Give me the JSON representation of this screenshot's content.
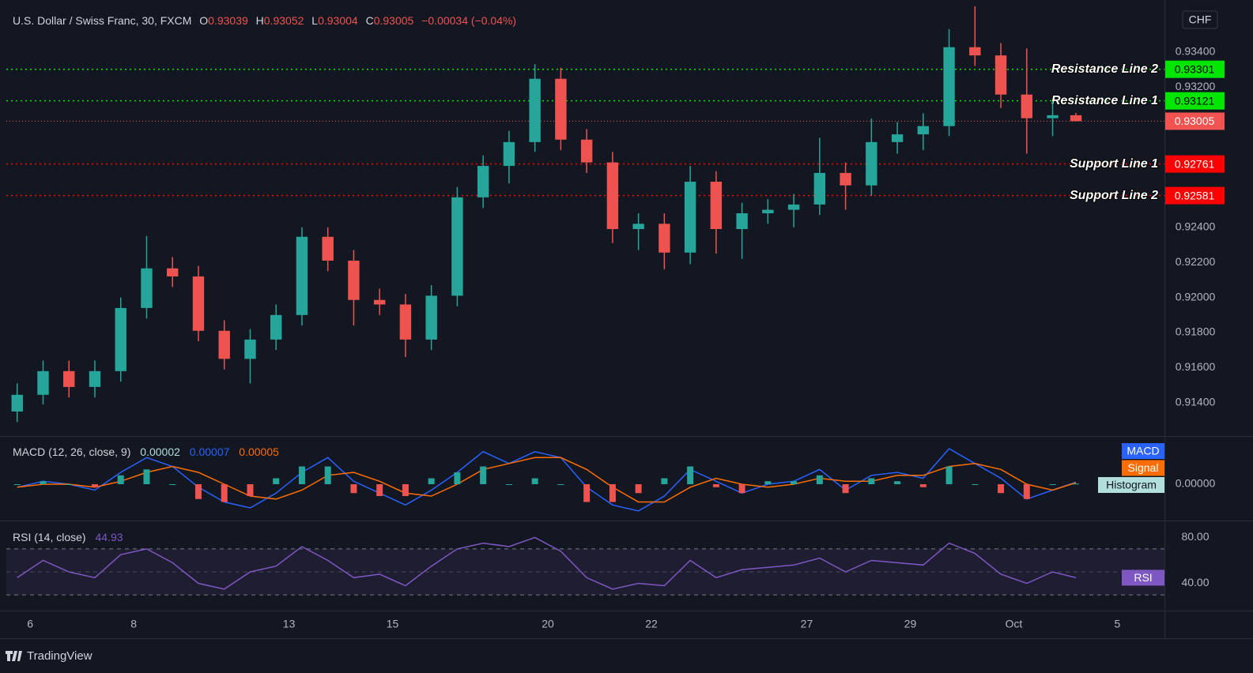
{
  "header": {
    "symbol": "U.S. Dollar / Swiss Franc, 30, FXCM",
    "ohlc_labels": [
      "O",
      "H",
      "L",
      "C"
    ],
    "change": "−0.00034 (−0.04%)",
    "currency": "CHF",
    "brand": "TradingView"
  },
  "chart_data": [
    {
      "type": "candlestick",
      "up_color": "#26a69a",
      "down_color": "#ef5350",
      "last_price_color": "#f05350",
      "x": [
        -0.25,
        0.25,
        0.75,
        1.25,
        1.75,
        2.25,
        2.75,
        3.25,
        3.75,
        4.25,
        4.75,
        5.25,
        5.75,
        6.25,
        6.75,
        7.25,
        7.75,
        8.25,
        8.75,
        9.25,
        9.75,
        10.25,
        10.75,
        11.25,
        11.75,
        12.25,
        12.75,
        13.25,
        13.75,
        14.25,
        14.75,
        15.25,
        15.75,
        16.25,
        16.75,
        17.25,
        17.75,
        18.25,
        18.75,
        19.25,
        19.75,
        20.2
      ],
      "open": [
        0.9135,
        0.91445,
        0.9158,
        0.9149,
        0.9158,
        0.9194,
        0.92166,
        0.9212,
        0.9181,
        0.9165,
        0.9176,
        0.919,
        0.92346,
        0.9221,
        0.91986,
        0.9196,
        0.9176,
        0.9201,
        0.92571,
        0.9275,
        0.92886,
        0.93247,
        0.929,
        0.9277,
        0.9239,
        0.9242,
        0.92256,
        0.9266,
        0.9239,
        0.9248,
        0.925,
        0.9253,
        0.9271,
        0.92639,
        0.92886,
        0.9293,
        0.92977,
        0.93427,
        0.9338,
        0.93157,
        0.93022,
        0.93039
      ],
      "high": [
        0.9151,
        0.9164,
        0.9164,
        0.9164,
        0.92,
        0.9235,
        0.9223,
        0.9218,
        0.9187,
        0.9182,
        0.9196,
        0.924,
        0.924,
        0.9227,
        0.9205,
        0.9202,
        0.9207,
        0.9263,
        0.9281,
        0.9295,
        0.9333,
        0.9331,
        0.9296,
        0.9283,
        0.9248,
        0.9248,
        0.9275,
        0.9272,
        0.9254,
        0.9256,
        0.9259,
        0.9291,
        0.9277,
        0.9302,
        0.93,
        0.9305,
        0.9353,
        0.9366,
        0.9345,
        0.9342,
        0.9312,
        0.93052
      ],
      "low": [
        0.9129,
        0.9139,
        0.9143,
        0.9143,
        0.9152,
        0.9188,
        0.9206,
        0.9175,
        0.9159,
        0.9151,
        0.917,
        0.9184,
        0.9215,
        0.9184,
        0.919,
        0.9166,
        0.917,
        0.9195,
        0.9251,
        0.9265,
        0.9283,
        0.9284,
        0.9271,
        0.9231,
        0.9227,
        0.9216,
        0.9219,
        0.9225,
        0.9222,
        0.9242,
        0.924,
        0.9247,
        0.925,
        0.9258,
        0.9282,
        0.9284,
        0.9292,
        0.9332,
        0.9308,
        0.9282,
        0.9292,
        0.93004
      ],
      "close": [
        0.91445,
        0.9158,
        0.9149,
        0.9158,
        0.9194,
        0.92166,
        0.9212,
        0.9181,
        0.9165,
        0.9176,
        0.919,
        0.92346,
        0.9221,
        0.91986,
        0.9196,
        0.9176,
        0.9201,
        0.92571,
        0.9275,
        0.92886,
        0.93247,
        0.929,
        0.9277,
        0.9239,
        0.9242,
        0.92256,
        0.9266,
        0.9239,
        0.9248,
        0.925,
        0.9253,
        0.9271,
        0.92639,
        0.92886,
        0.9293,
        0.92977,
        0.93427,
        0.9338,
        0.93157,
        0.93022,
        0.93039,
        0.93005
      ],
      "xlim": [
        -0.46,
        21.91
      ],
      "xticks": [
        {
          "value": 0,
          "label": "6"
        },
        {
          "value": 2,
          "label": "8"
        },
        {
          "value": 5,
          "label": "13"
        },
        {
          "value": 7,
          "label": "15"
        },
        {
          "value": 10,
          "label": "20"
        },
        {
          "value": 12,
          "label": "22"
        },
        {
          "value": 15,
          "label": "27"
        },
        {
          "value": 17,
          "label": "29"
        },
        {
          "value": 19,
          "label": "Oct"
        },
        {
          "value": 21,
          "label": "5"
        }
      ],
      "ylim": [
        0.9121,
        0.9366
      ],
      "yticks": [
        {
          "value": 0.914,
          "label": "0.91400"
        },
        {
          "value": 0.916,
          "label": "0.91600"
        },
        {
          "value": 0.918,
          "label": "0.91800"
        },
        {
          "value": 0.92,
          "label": "0.92000"
        },
        {
          "value": 0.922,
          "label": "0.92200"
        },
        {
          "value": 0.924,
          "label": "0.92400"
        },
        {
          "value": 0.932,
          "label": "0.93200"
        },
        {
          "value": 0.934,
          "label": "0.93400"
        }
      ],
      "levels": [
        {
          "name": "Resistance Line 2",
          "value": 0.93301,
          "color": "#00e600",
          "text_color": "#000000"
        },
        {
          "name": "Resistance Line 1",
          "value": 0.93121,
          "color": "#00e600",
          "text_color": "#000000"
        },
        {
          "name": "Support Line 1",
          "value": 0.92761,
          "color": "#ff0000",
          "text_color": "#ffffff"
        },
        {
          "name": "Support Line 2",
          "value": 0.92581,
          "color": "#ff0000",
          "text_color": "#ffffff"
        }
      ]
    },
    {
      "type": "line",
      "title": "MACD (12, 26, close, 9)",
      "x": [
        -0.25,
        0.25,
        0.75,
        1.25,
        1.75,
        2.25,
        2.75,
        3.25,
        3.75,
        4.25,
        4.75,
        5.25,
        5.75,
        6.25,
        6.75,
        7.25,
        7.75,
        8.25,
        8.75,
        9.25,
        9.75,
        10.25,
        10.75,
        11.25,
        11.75,
        12.25,
        12.75,
        13.25,
        13.75,
        14.25,
        14.75,
        15.25,
        15.75,
        16.25,
        16.75,
        17.25,
        17.75,
        18.25,
        18.75,
        19.25,
        19.75,
        20.2
      ],
      "ylim": [
        -0.0012,
        0.0016
      ],
      "yticks": [
        {
          "value": 0,
          "label": "0.00000"
        }
      ],
      "series": [
        {
          "name": "MACD",
          "color": "#2962ff",
          "values": [
            -0.0001,
            0.0001,
            0,
            -0.0002,
            0.0004,
            0.0009,
            0.0006,
            -0.0001,
            -0.0006,
            -0.0008,
            -0.0003,
            0.0004,
            0.0009,
            0.0001,
            -0.0003,
            -0.0007,
            -0.0002,
            0.0004,
            0.0011,
            0.0007,
            0.0011,
            0.0009,
            -0.0001,
            -0.0007,
            -0.0009,
            -0.0004,
            0.0005,
            0.0001,
            -0.0003,
            0,
            0.0001,
            0.0005,
            -0.0002,
            0.0003,
            0.0004,
            0.0002,
            0.0012,
            0.0007,
            0.0002,
            -0.0005,
            -0.0002,
            7e-05
          ]
        },
        {
          "name": "Signal",
          "color": "#ff6d00",
          "values": [
            -0.0001,
            0,
            0,
            -0.0001,
            0.0001,
            0.0004,
            0.0006,
            0.0004,
            0,
            -0.0004,
            -0.0005,
            -0.0002,
            0.0003,
            0.0004,
            0.0001,
            -0.0003,
            -0.0004,
            0,
            0.0005,
            0.0007,
            0.0009,
            0.0009,
            0.0005,
            -0.0001,
            -0.0006,
            -0.0006,
            -0.0001,
            0.0002,
            0,
            -0.0001,
            0,
            0.0002,
            0.0001,
            0.0001,
            0.0003,
            0.0003,
            0.0006,
            0.0007,
            0.0005,
            0,
            -0.0002,
            5e-05
          ]
        },
        {
          "name": "Histogram",
          "style": "histogram",
          "color": "#26a69a",
          "negative_color": "#ef5350",
          "label_background": "#b2dfdb",
          "values": [
            0,
            0.0001,
            0,
            -0.0001,
            0.0003,
            0.0005,
            0,
            -0.0005,
            -0.0006,
            -0.0004,
            0.0002,
            0.0006,
            0.0006,
            -0.0003,
            -0.0004,
            -0.0004,
            0.0002,
            0.0004,
            0.0006,
            0,
            0.0002,
            0,
            -0.0006,
            -0.0006,
            -0.0003,
            0.0002,
            0.0006,
            -0.0001,
            -0.0003,
            0.0001,
            0.0001,
            0.0003,
            -0.0003,
            0.0002,
            0.0001,
            -0.0001,
            0.0006,
            0,
            -0.0003,
            -0.0005,
            0,
            2e-05
          ]
        }
      ]
    },
    {
      "type": "line",
      "title": "RSI (14, close)",
      "x": [
        -0.25,
        0.25,
        0.75,
        1.25,
        1.75,
        2.25,
        2.75,
        3.25,
        3.75,
        4.25,
        4.75,
        5.25,
        5.75,
        6.25,
        6.75,
        7.25,
        7.75,
        8.25,
        8.75,
        9.25,
        9.75,
        10.25,
        10.75,
        11.25,
        11.75,
        12.25,
        12.75,
        13.25,
        13.75,
        14.25,
        14.75,
        15.25,
        15.75,
        16.25,
        16.75,
        17.25,
        17.75,
        18.25,
        18.75,
        19.25,
        19.75,
        20.2
      ],
      "ylim": [
        17,
        94
      ],
      "yticks": [
        {
          "value": 80,
          "label": "80.00"
        },
        {
          "value": 40,
          "label": "40.00"
        }
      ],
      "band": [
        30,
        70
      ],
      "band_color": "#7e57c2",
      "midline": 50,
      "series": [
        {
          "name": "RSI",
          "color": "#7e57c2",
          "values": [
            45,
            60,
            50,
            45,
            65,
            70,
            58,
            40,
            35,
            50,
            55,
            72,
            60,
            45,
            48,
            38,
            55,
            70,
            75,
            72,
            80,
            68,
            45,
            35,
            40,
            38,
            60,
            45,
            52,
            54,
            56,
            62,
            50,
            60,
            58,
            56,
            75,
            66,
            48,
            40,
            50,
            44.93
          ]
        }
      ]
    }
  ]
}
